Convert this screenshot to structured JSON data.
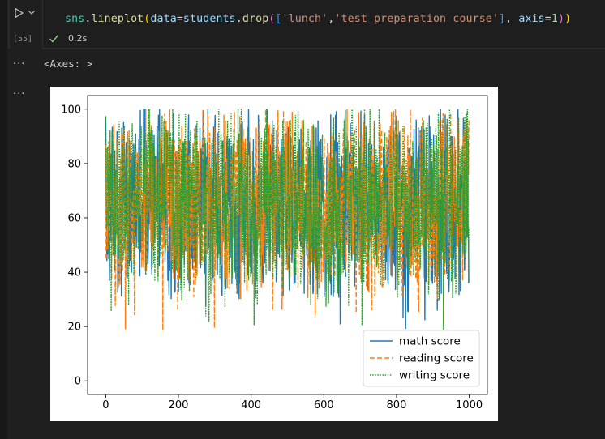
{
  "cell": {
    "execution_count": "[55]",
    "code": {
      "t1": "sns",
      "t2": ".",
      "t3": "lineplot",
      "t4": "(",
      "t5": "data",
      "t6": "=",
      "t7": "students",
      "t8": ".",
      "t9": "drop",
      "t10": "(",
      "t11": "[",
      "t12": "'lunch'",
      "t13": ",",
      "t14": "'test preparation course'",
      "t15": "]",
      "t16": ", ",
      "t17": "axis",
      "t18": "=",
      "t19": "1",
      "t20": ")",
      "t21": ")"
    },
    "status_time": "0.2s",
    "run_icon": "play-icon",
    "expand_icon": "chevron-down-icon",
    "success_icon": "check-icon"
  },
  "output": {
    "dots_1": "···",
    "dots_2": "···",
    "repr_text": "<Axes: >"
  },
  "colors": {
    "math": "#1f77b4",
    "reading": "#ff7f0e",
    "writing": "#2ca02c"
  },
  "chart_data": {
    "type": "line",
    "title": "",
    "xlabel": "",
    "ylabel": "",
    "xlim": [
      -50,
      1050
    ],
    "ylim": [
      -5,
      105
    ],
    "xticks": [
      0,
      200,
      400,
      600,
      800,
      1000
    ],
    "yticks": [
      0,
      20,
      40,
      60,
      80,
      100
    ],
    "grid": false,
    "legend_position": "lower right",
    "x": [
      0,
      50,
      100,
      150,
      200,
      250,
      300,
      350,
      400,
      450,
      500,
      550,
      600,
      650,
      700,
      750,
      800,
      850,
      900,
      950,
      999
    ],
    "series": [
      {
        "name": "math score",
        "style": "solid",
        "values": [
          72,
          60,
          100,
          78,
          55,
          66,
          62,
          70,
          60,
          65,
          70,
          62,
          30,
          74,
          68,
          70,
          64,
          68,
          72,
          66,
          77
        ]
      },
      {
        "name": "reading score",
        "style": "dashed",
        "values": [
          72,
          62,
          95,
          80,
          60,
          68,
          64,
          72,
          62,
          68,
          72,
          66,
          35,
          76,
          70,
          72,
          66,
          70,
          74,
          68,
          86
        ]
      },
      {
        "name": "writing score",
        "style": "dotted",
        "values": [
          74,
          62,
          98,
          82,
          58,
          70,
          62,
          72,
          62,
          68,
          72,
          66,
          30,
          76,
          70,
          72,
          66,
          70,
          74,
          68,
          86
        ]
      }
    ]
  }
}
